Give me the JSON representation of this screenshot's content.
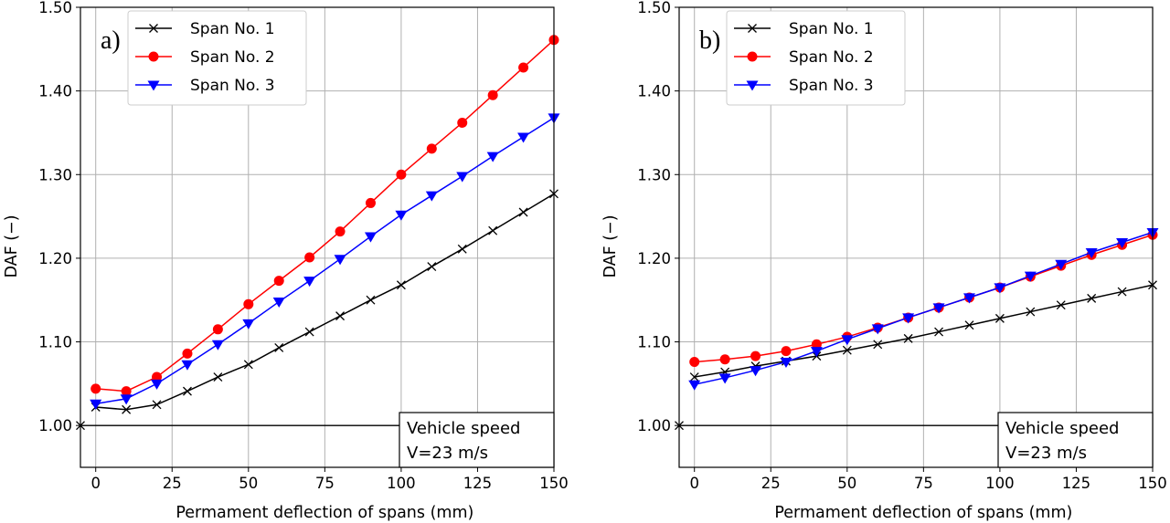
{
  "chart_data": [
    {
      "type": "line",
      "panel_label": "a)",
      "xlabel": "Permament deflection of spans (mm)",
      "ylabel": "DAF (−)",
      "xlim": [
        -5,
        150
      ],
      "ylim": [
        0.95,
        1.5
      ],
      "xticks": [
        "0",
        "25",
        "50",
        "75",
        "100",
        "125",
        "150"
      ],
      "yticks": [
        "1.00",
        "1.10",
        "1.20",
        "1.30",
        "1.40",
        "1.50"
      ],
      "grid": true,
      "legend": "top-left",
      "annotation": [
        "Vehicle speed",
        "V=23 m/s"
      ],
      "reference_line": 1.0,
      "x": [
        0,
        10,
        20,
        30,
        40,
        50,
        60,
        70,
        80,
        90,
        100,
        110,
        120,
        130,
        140,
        150
      ],
      "series": [
        {
          "name": "Span No. 1",
          "color": "#000000",
          "marker": "x",
          "values": [
            1.022,
            1.019,
            1.025,
            1.041,
            1.058,
            1.073,
            1.093,
            1.112,
            1.131,
            1.15,
            1.168,
            1.19,
            1.211,
            1.233,
            1.255,
            1.277
          ]
        },
        {
          "name": "Span No. 2",
          "color": "#ff0000",
          "marker": "circle",
          "values": [
            1.044,
            1.041,
            1.058,
            1.086,
            1.115,
            1.145,
            1.173,
            1.201,
            1.232,
            1.266,
            1.3,
            1.331,
            1.362,
            1.395,
            1.428,
            1.461
          ]
        },
        {
          "name": "Span No. 3",
          "color": "#0000ff",
          "marker": "triangle-down",
          "values": [
            1.026,
            1.032,
            1.05,
            1.073,
            1.097,
            1.122,
            1.148,
            1.173,
            1.199,
            1.226,
            1.252,
            1.275,
            1.298,
            1.322,
            1.345,
            1.368
          ]
        }
      ]
    },
    {
      "type": "line",
      "panel_label": "b)",
      "xlabel": "Permament deflection of spans (mm)",
      "ylabel": "DAF (−)",
      "xlim": [
        -5,
        150
      ],
      "ylim": [
        0.95,
        1.5
      ],
      "xticks": [
        "0",
        "25",
        "50",
        "75",
        "100",
        "125",
        "150"
      ],
      "yticks": [
        "1.00",
        "1.10",
        "1.20",
        "1.30",
        "1.40",
        "1.50"
      ],
      "grid": true,
      "legend": "top-left",
      "annotation": [
        "Vehicle speed",
        "V=23 m/s"
      ],
      "reference_line": 1.0,
      "x": [
        0,
        10,
        20,
        30,
        40,
        50,
        60,
        70,
        80,
        90,
        100,
        110,
        120,
        130,
        140,
        150
      ],
      "series": [
        {
          "name": "Span No. 1",
          "color": "#000000",
          "marker": "x",
          "values": [
            1.058,
            1.064,
            1.071,
            1.077,
            1.083,
            1.09,
            1.097,
            1.104,
            1.112,
            1.12,
            1.128,
            1.136,
            1.144,
            1.152,
            1.16,
            1.168
          ]
        },
        {
          "name": "Span No. 2",
          "color": "#ff0000",
          "marker": "circle",
          "values": [
            1.076,
            1.079,
            1.083,
            1.089,
            1.097,
            1.106,
            1.117,
            1.129,
            1.141,
            1.153,
            1.165,
            1.178,
            1.191,
            1.204,
            1.216,
            1.228
          ]
        },
        {
          "name": "Span No. 3",
          "color": "#0000ff",
          "marker": "triangle-down",
          "values": [
            1.049,
            1.057,
            1.066,
            1.076,
            1.089,
            1.103,
            1.116,
            1.129,
            1.141,
            1.153,
            1.165,
            1.179,
            1.193,
            1.207,
            1.219,
            1.231
          ]
        }
      ]
    }
  ]
}
